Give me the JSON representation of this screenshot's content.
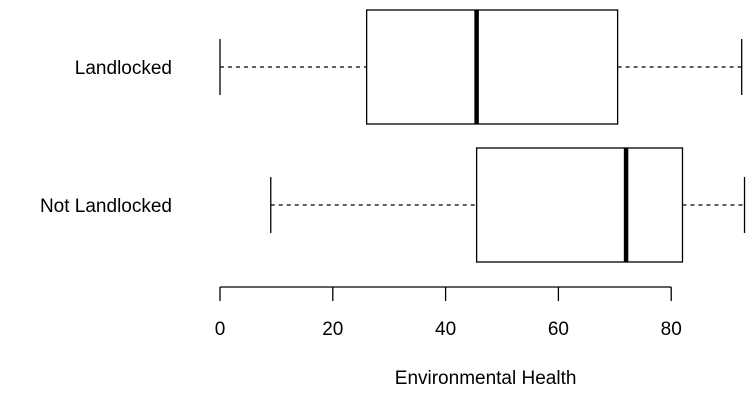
{
  "chart_data": {
    "type": "box",
    "orientation": "horizontal",
    "xlabel": "Environmental Health",
    "xticks": [
      0,
      20,
      40,
      60,
      80
    ],
    "xlim": [
      0,
      93
    ],
    "categories": [
      "Landlocked",
      "Not Landlocked"
    ],
    "boxes": [
      {
        "category": "Landlocked",
        "whisker_low": 0,
        "q1": 26,
        "median": 45.5,
        "q3": 70.5,
        "whisker_high": 92.5
      },
      {
        "category": "Not Landlocked",
        "whisker_low": 9,
        "q1": 45.5,
        "median": 72,
        "q3": 82,
        "whisker_high": 93
      }
    ],
    "grid": false,
    "colors": {
      "box_fill": "#ffffff",
      "stroke": "#000000"
    }
  }
}
